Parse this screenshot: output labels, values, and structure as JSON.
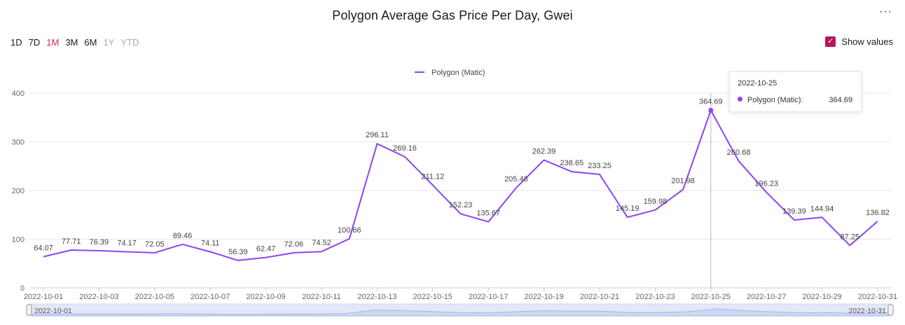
{
  "header": {
    "title": "Polygon Average Gas Price Per Day, Gwei",
    "more_label": "···"
  },
  "range_buttons": [
    {
      "label": "1D",
      "state": "normal"
    },
    {
      "label": "7D",
      "state": "normal"
    },
    {
      "label": "1M",
      "state": "active"
    },
    {
      "label": "3M",
      "state": "normal"
    },
    {
      "label": "6M",
      "state": "normal"
    },
    {
      "label": "1Y",
      "state": "disabled"
    },
    {
      "label": "YTD",
      "state": "disabled"
    }
  ],
  "show_values": {
    "label": "Show values",
    "checked": true,
    "check_glyph": "✓"
  },
  "colors": {
    "series": "#8b45f2",
    "accent": "#d6246e",
    "checkbox": "#b5155f"
  },
  "tooltip": {
    "date": "2022-10-25",
    "series": "Polygon (Matic):",
    "value": "364.69"
  },
  "navigator": {
    "start_label": "2022-10-01",
    "end_label": "2022-10-31"
  },
  "chart_data": {
    "type": "line",
    "title": "Polygon Average Gas Price Per Day, Gwei",
    "xlabel": "",
    "ylabel": "",
    "ylim": [
      0,
      400
    ],
    "yticks": [
      0,
      100,
      200,
      300,
      400
    ],
    "grid": true,
    "legend_position": "top-center",
    "x": [
      "2022-10-01",
      "2022-10-02",
      "2022-10-03",
      "2022-10-04",
      "2022-10-05",
      "2022-10-06",
      "2022-10-07",
      "2022-10-08",
      "2022-10-09",
      "2022-10-10",
      "2022-10-11",
      "2022-10-12",
      "2022-10-13",
      "2022-10-14",
      "2022-10-15",
      "2022-10-16",
      "2022-10-17",
      "2022-10-18",
      "2022-10-19",
      "2022-10-20",
      "2022-10-21",
      "2022-10-22",
      "2022-10-23",
      "2022-10-24",
      "2022-10-25",
      "2022-10-26",
      "2022-10-27",
      "2022-10-28",
      "2022-10-29",
      "2022-10-30",
      "2022-10-31"
    ],
    "xtick_labels": [
      "2022-10-01",
      "2022-10-03",
      "2022-10-05",
      "2022-10-07",
      "2022-10-09",
      "2022-10-11",
      "2022-10-13",
      "2022-10-15",
      "2022-10-17",
      "2022-10-19",
      "2022-10-21",
      "2022-10-23",
      "2022-10-25",
      "2022-10-27",
      "2022-10-29",
      "2022-10-31"
    ],
    "series": [
      {
        "name": "Polygon (Matic)",
        "values": [
          64.07,
          77.71,
          76.39,
          74.17,
          72.05,
          89.46,
          74.11,
          56.39,
          62.47,
          72.06,
          74.52,
          100.66,
          296.11,
          269.16,
          211.12,
          152.23,
          135.67,
          205.48,
          262.39,
          238.65,
          233.25,
          145.19,
          159.98,
          201.98,
          364.69,
          260.68,
          196.23,
          139.39,
          144.94,
          87.25,
          136.82
        ],
        "labels": [
          "64.07",
          "77.71",
          "76.39",
          "74.17",
          "72.05",
          "89.46",
          "74.11",
          "56.39",
          "62.47",
          "72.06",
          "74.52",
          "100.66",
          "296.11",
          "269.16",
          "211.12",
          "152.23",
          "135.67",
          "205.48",
          "262.39",
          "238.65",
          "233.25",
          "145.19",
          "159.98",
          "201.98",
          "364.69",
          "260.68",
          "196.23",
          "139.39",
          "144.94",
          "87.25",
          "136.82"
        ]
      }
    ],
    "highlight": {
      "x": "2022-10-25",
      "value": 364.69
    }
  }
}
